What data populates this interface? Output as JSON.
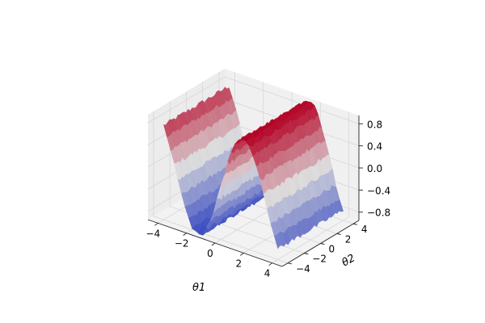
{
  "chart_data": {
    "type": "surface3d",
    "title": "",
    "xlabel": "θ1",
    "ylabel": "θ2",
    "zlabel": "",
    "xlim": [
      -4.7,
      4.7
    ],
    "ylim": [
      -4.7,
      4.7
    ],
    "zlim": [
      -0.95,
      0.95
    ],
    "x_ticks": [
      "−4",
      "−2",
      "0",
      "2",
      "4"
    ],
    "y_ticks": [
      "−4",
      "−2",
      "0",
      "2",
      "4"
    ],
    "z_ticks": [
      "−0.8",
      "−0.4",
      "0.0",
      "0.4",
      "0.8"
    ],
    "x_tick_values": [
      -4,
      -2,
      0,
      2,
      4
    ],
    "y_tick_values": [
      -4,
      -2,
      0,
      2,
      4
    ],
    "z_tick_values": [
      -0.8,
      -0.4,
      0.0,
      0.4,
      0.8
    ],
    "surface": {
      "function": "z = sin(θ1) (with slight random noise)",
      "x_range": [
        -4.0,
        4.0
      ],
      "y_range": [
        -4.0,
        4.0
      ],
      "grid_resolution": 32,
      "noise_amplitude": 0.04
    },
    "colormap": {
      "name": "coolwarm",
      "low": "#3b4cc0",
      "mid": "#dddddd",
      "high": "#b40426"
    },
    "grid": true,
    "pane_color": "#f2f2f2",
    "grid_color": "#d6d6d6"
  }
}
